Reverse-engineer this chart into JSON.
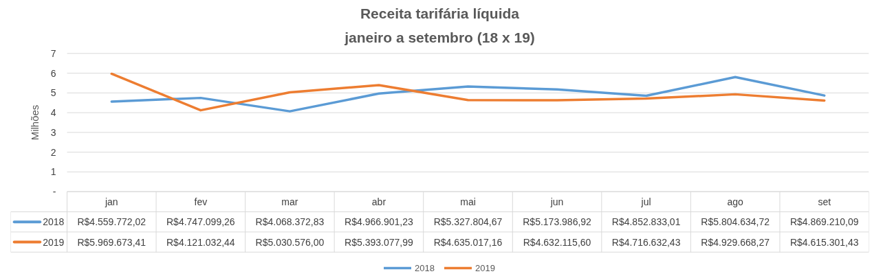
{
  "chart_data": {
    "type": "line",
    "title": "Receita tarifária líquida",
    "subtitle": "janeiro a setembro (18 x 19)",
    "ylabel": "Milhões",
    "categories": [
      "jan",
      "fev",
      "mar",
      "abr",
      "mai",
      "jun",
      "jul",
      "ago",
      "set"
    ],
    "series": [
      {
        "name": "2018",
        "color": "#5b9bd5",
        "values": [
          4.55977202,
          4.74709926,
          4.06837283,
          4.96690123,
          5.32780467,
          5.17398692,
          4.85283301,
          5.80463472,
          4.86921009
        ],
        "value_labels": [
          "R$4.559.772,02",
          "R$4.747.099,26",
          "R$4.068.372,83",
          "R$4.966.901,23",
          "R$5.327.804,67",
          "R$5.173.986,92",
          "R$4.852.833,01",
          "R$5.804.634,72",
          "R$4.869.210,09"
        ]
      },
      {
        "name": "2019",
        "color": "#ed7d31",
        "values": [
          5.96967341,
          4.12103244,
          5.030576,
          5.39307799,
          4.63501716,
          4.6321156,
          4.71663243,
          4.92966827,
          4.61530143
        ],
        "value_labels": [
          "R$5.969.673,41",
          "R$4.121.032,44",
          "R$5.030.576,00",
          "R$5.393.077,99",
          "R$4.635.017,16",
          "R$4.632.115,60",
          "R$4.716.632,43",
          "R$4.929.668,27",
          "R$4.615.301,43"
        ]
      }
    ],
    "ylim": [
      0,
      7
    ],
    "yticks": [
      {
        "value": 0,
        "label": "-"
      },
      1,
      2,
      3,
      4,
      5,
      6,
      7
    ],
    "grid": "y",
    "legend": "bottom"
  }
}
